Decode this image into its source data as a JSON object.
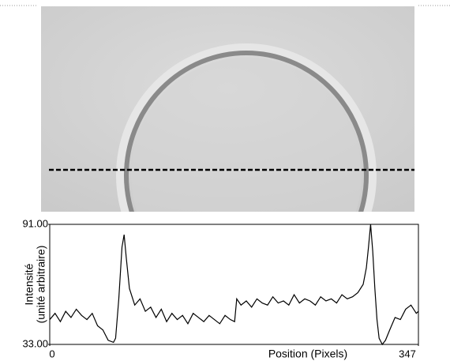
{
  "chart_data": {
    "type": "line",
    "xlabel": "Position (Pixels)",
    "ylabel": [
      "Intensité",
      "(unité arbitraire)"
    ],
    "x": [
      0,
      5,
      10,
      15,
      20,
      25,
      30,
      35,
      40,
      45,
      50,
      55,
      60,
      62,
      65,
      68,
      70,
      72,
      75,
      80,
      85,
      90,
      95,
      100,
      105,
      110,
      115,
      120,
      125,
      130,
      135,
      140,
      145,
      150,
      155,
      160,
      165,
      170,
      174,
      176,
      180,
      185,
      190,
      195,
      200,
      205,
      210,
      215,
      220,
      225,
      230,
      235,
      240,
      245,
      250,
      255,
      260,
      265,
      270,
      275,
      280,
      285,
      290,
      295,
      298,
      300,
      302,
      304,
      306,
      308,
      310,
      313,
      316,
      320,
      325,
      330,
      335,
      340,
      345,
      347
    ],
    "values": [
      45,
      48,
      44,
      49,
      46,
      50,
      47,
      45,
      48,
      42,
      40,
      35,
      34,
      36,
      55,
      80,
      86,
      75,
      60,
      52,
      55,
      49,
      51,
      46,
      50,
      44,
      48,
      45,
      47,
      43,
      48,
      46,
      44,
      47,
      45,
      43,
      47,
      45,
      44,
      55,
      52,
      54,
      51,
      55,
      53,
      52,
      56,
      53,
      54,
      52,
      57,
      53,
      55,
      54,
      52,
      56,
      54,
      55,
      53,
      57,
      55,
      56,
      58,
      62,
      70,
      80,
      91,
      78,
      60,
      45,
      36,
      33,
      35,
      40,
      46,
      45,
      50,
      52,
      48,
      49
    ],
    "color": "#000000",
    "xlim": [
      0,
      347
    ],
    "ylim": [
      33,
      91
    ],
    "xticks": [
      0,
      347
    ],
    "yticks": [
      {
        "value": 33,
        "label": "33.00"
      },
      {
        "value": 91,
        "label": "91.00"
      }
    ]
  }
}
